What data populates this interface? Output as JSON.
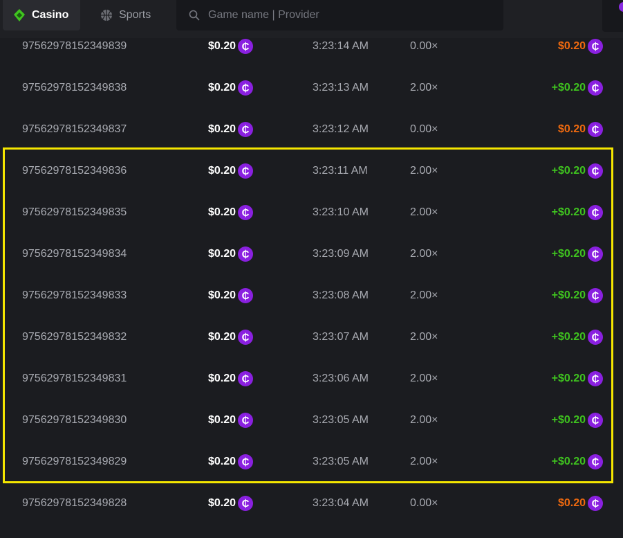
{
  "header": {
    "tabs": [
      {
        "label": "Casino",
        "icon": "diamond-card-icon",
        "active": true
      },
      {
        "label": "Sports",
        "icon": "basketball-icon",
        "active": false
      }
    ],
    "search": {
      "placeholder": "Game name | Provider"
    }
  },
  "colors": {
    "win": "#3fc41f",
    "loss": "#f06a0f",
    "coin": "#8a20e0",
    "highlight": "#f5e600"
  },
  "rows": [
    {
      "id": "97562978152349839",
      "bet": "$0.20",
      "time": "3:23:14 AM",
      "multiplier": "0.00×",
      "payout": "$0.20",
      "result": "loss"
    },
    {
      "id": "97562978152349838",
      "bet": "$0.20",
      "time": "3:23:13 AM",
      "multiplier": "2.00×",
      "payout": "+$0.20",
      "result": "win"
    },
    {
      "id": "97562978152349837",
      "bet": "$0.20",
      "time": "3:23:12 AM",
      "multiplier": "0.00×",
      "payout": "$0.20",
      "result": "loss"
    },
    {
      "id": "97562978152349836",
      "bet": "$0.20",
      "time": "3:23:11 AM",
      "multiplier": "2.00×",
      "payout": "+$0.20",
      "result": "win"
    },
    {
      "id": "97562978152349835",
      "bet": "$0.20",
      "time": "3:23:10 AM",
      "multiplier": "2.00×",
      "payout": "+$0.20",
      "result": "win"
    },
    {
      "id": "97562978152349834",
      "bet": "$0.20",
      "time": "3:23:09 AM",
      "multiplier": "2.00×",
      "payout": "+$0.20",
      "result": "win"
    },
    {
      "id": "97562978152349833",
      "bet": "$0.20",
      "time": "3:23:08 AM",
      "multiplier": "2.00×",
      "payout": "+$0.20",
      "result": "win"
    },
    {
      "id": "97562978152349832",
      "bet": "$0.20",
      "time": "3:23:07 AM",
      "multiplier": "2.00×",
      "payout": "+$0.20",
      "result": "win"
    },
    {
      "id": "97562978152349831",
      "bet": "$0.20",
      "time": "3:23:06 AM",
      "multiplier": "2.00×",
      "payout": "+$0.20",
      "result": "win"
    },
    {
      "id": "97562978152349830",
      "bet": "$0.20",
      "time": "3:23:05 AM",
      "multiplier": "2.00×",
      "payout": "+$0.20",
      "result": "win"
    },
    {
      "id": "97562978152349829",
      "bet": "$0.20",
      "time": "3:23:05 AM",
      "multiplier": "2.00×",
      "payout": "+$0.20",
      "result": "win"
    },
    {
      "id": "97562978152349828",
      "bet": "$0.20",
      "time": "3:23:04 AM",
      "multiplier": "0.00×",
      "payout": "$0.20",
      "result": "loss"
    }
  ],
  "coin_symbol": "₵"
}
